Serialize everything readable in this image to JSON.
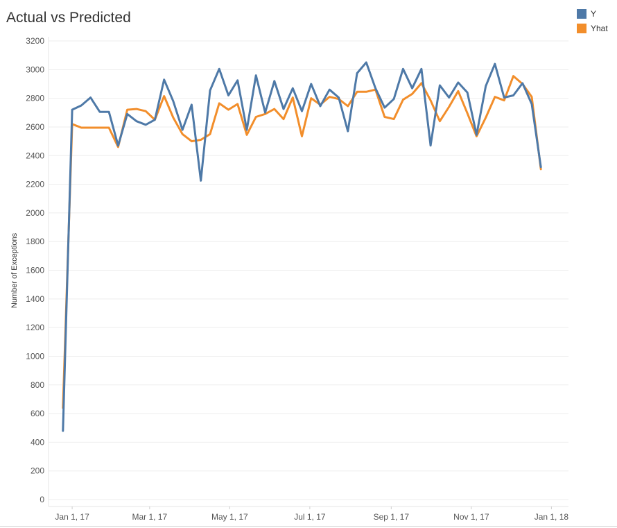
{
  "chart_data": {
    "type": "line",
    "title": "Actual vs Predicted",
    "xlabel": "",
    "ylabel": "Number of Exceptions",
    "ylim": [
      0,
      3200
    ],
    "yticks": [
      0,
      200,
      400,
      600,
      800,
      1000,
      1200,
      1400,
      1600,
      1800,
      2000,
      2200,
      2400,
      2600,
      2800,
      3000,
      3200
    ],
    "xticks": [
      {
        "date": "2017-01-01",
        "label": "Jan 1, 17"
      },
      {
        "date": "2017-03-01",
        "label": "Mar 1, 17"
      },
      {
        "date": "2017-05-01",
        "label": "May 1, 17"
      },
      {
        "date": "2017-07-01",
        "label": "Jul 1, 17"
      },
      {
        "date": "2017-09-01",
        "label": "Sep 1, 17"
      },
      {
        "date": "2017-11-01",
        "label": "Nov 1, 17"
      },
      {
        "date": "2018-01-01",
        "label": "Jan 1, 18"
      }
    ],
    "xlim": [
      "2016-12-14",
      "2018-01-14"
    ],
    "grid": true,
    "legend_position": "top-right",
    "x": [
      "2016-12-25",
      "2017-01-01",
      "2017-01-08",
      "2017-01-15",
      "2017-01-22",
      "2017-01-29",
      "2017-02-05",
      "2017-02-12",
      "2017-02-19",
      "2017-02-26",
      "2017-03-05",
      "2017-03-12",
      "2017-03-19",
      "2017-03-26",
      "2017-04-02",
      "2017-04-09",
      "2017-04-16",
      "2017-04-23",
      "2017-04-30",
      "2017-05-07",
      "2017-05-14",
      "2017-05-21",
      "2017-05-28",
      "2017-06-04",
      "2017-06-11",
      "2017-06-18",
      "2017-06-25",
      "2017-07-02",
      "2017-07-09",
      "2017-07-16",
      "2017-07-23",
      "2017-07-30",
      "2017-08-06",
      "2017-08-13",
      "2017-08-20",
      "2017-08-27",
      "2017-09-03",
      "2017-09-10",
      "2017-09-17",
      "2017-09-24",
      "2017-10-01",
      "2017-10-08",
      "2017-10-15",
      "2017-10-22",
      "2017-10-29",
      "2017-11-05",
      "2017-11-12",
      "2017-11-19",
      "2017-11-26",
      "2017-12-03",
      "2017-12-10",
      "2017-12-17",
      "2017-12-24"
    ],
    "series": [
      {
        "name": "Y",
        "color": "#4e79a7",
        "values": [
          480,
          2720,
          2750,
          2805,
          2705,
          2705,
          2470,
          2690,
          2640,
          2615,
          2650,
          2930,
          2780,
          2580,
          2755,
          2225,
          2855,
          3005,
          2820,
          2925,
          2580,
          2960,
          2700,
          2920,
          2725,
          2870,
          2710,
          2900,
          2745,
          2860,
          2805,
          2570,
          2975,
          3050,
          2870,
          2735,
          2795,
          3005,
          2870,
          3005,
          2470,
          2890,
          2805,
          2910,
          2840,
          2545,
          2885,
          3040,
          2805,
          2820,
          2905,
          2760,
          2320
        ]
      },
      {
        "name": "Yhat",
        "color": "#f28e2b",
        "values": [
          640,
          2620,
          2595,
          2595,
          2595,
          2595,
          2460,
          2720,
          2725,
          2710,
          2650,
          2815,
          2665,
          2550,
          2500,
          2510,
          2550,
          2765,
          2720,
          2760,
          2545,
          2670,
          2690,
          2725,
          2655,
          2805,
          2535,
          2800,
          2755,
          2810,
          2795,
          2745,
          2845,
          2845,
          2860,
          2670,
          2655,
          2790,
          2830,
          2905,
          2785,
          2640,
          2740,
          2850,
          2695,
          2535,
          2665,
          2810,
          2785,
          2955,
          2900,
          2810,
          2305
        ]
      }
    ]
  }
}
